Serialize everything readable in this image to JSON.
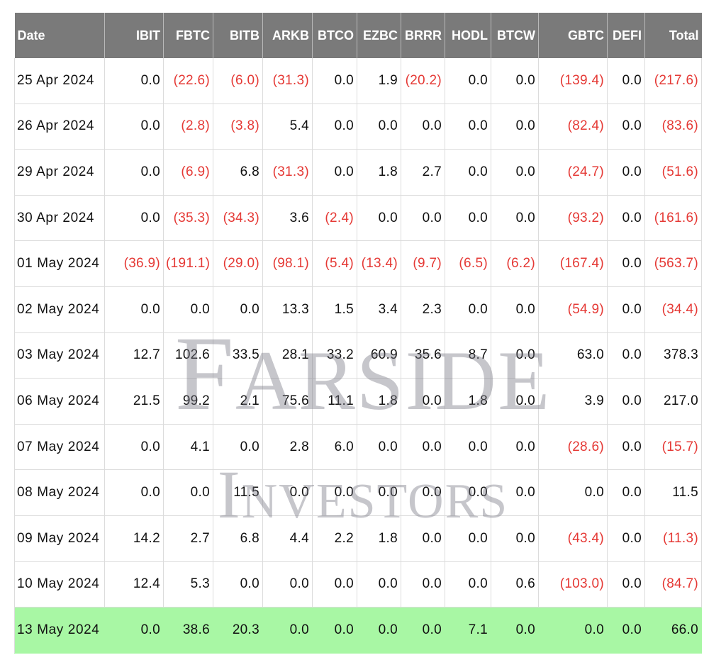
{
  "table": {
    "headers": [
      "Date",
      "IBIT",
      "FBTC",
      "BITB",
      "ARKB",
      "BTCO",
      "EZBC",
      "BRRR",
      "HODL",
      "BTCW",
      "GBTC",
      "DEFI",
      "Total"
    ],
    "rows": [
      [
        "25 Apr 2024",
        "0.0",
        "(22.6)",
        "(6.0)",
        "(31.3)",
        "0.0",
        "1.9",
        "(20.2)",
        "0.0",
        "0.0",
        "(139.4)",
        "0.0",
        "(217.6)"
      ],
      [
        "26 Apr 2024",
        "0.0",
        "(2.8)",
        "(3.8)",
        "5.4",
        "0.0",
        "0.0",
        "0.0",
        "0.0",
        "0.0",
        "(82.4)",
        "0.0",
        "(83.6)"
      ],
      [
        "29 Apr 2024",
        "0.0",
        "(6.9)",
        "6.8",
        "(31.3)",
        "0.0",
        "1.8",
        "2.7",
        "0.0",
        "0.0",
        "(24.7)",
        "0.0",
        "(51.6)"
      ],
      [
        "30 Apr 2024",
        "0.0",
        "(35.3)",
        "(34.3)",
        "3.6",
        "(2.4)",
        "0.0",
        "0.0",
        "0.0",
        "0.0",
        "(93.2)",
        "0.0",
        "(161.6)"
      ],
      [
        "01 May 2024",
        "(36.9)",
        "(191.1)",
        "(29.0)",
        "(98.1)",
        "(5.4)",
        "(13.4)",
        "(9.7)",
        "(6.5)",
        "(6.2)",
        "(167.4)",
        "0.0",
        "(563.7)"
      ],
      [
        "02 May 2024",
        "0.0",
        "0.0",
        "0.0",
        "13.3",
        "1.5",
        "3.4",
        "2.3",
        "0.0",
        "0.0",
        "(54.9)",
        "0.0",
        "(34.4)"
      ],
      [
        "03 May 2024",
        "12.7",
        "102.6",
        "33.5",
        "28.1",
        "33.2",
        "60.9",
        "35.6",
        "8.7",
        "0.0",
        "63.0",
        "0.0",
        "378.3"
      ],
      [
        "06 May 2024",
        "21.5",
        "99.2",
        "2.1",
        "75.6",
        "11.1",
        "1.8",
        "0.0",
        "1.8",
        "0.0",
        "3.9",
        "0.0",
        "217.0"
      ],
      [
        "07 May 2024",
        "0.0",
        "4.1",
        "0.0",
        "2.8",
        "6.0",
        "0.0",
        "0.0",
        "0.0",
        "0.0",
        "(28.6)",
        "0.0",
        "(15.7)"
      ],
      [
        "08 May 2024",
        "0.0",
        "0.0",
        "11.5",
        "0.0",
        "0.0",
        "0.0",
        "0.0",
        "0.0",
        "0.0",
        "0.0",
        "0.0",
        "11.5"
      ],
      [
        "09 May 2024",
        "14.2",
        "2.7",
        "6.8",
        "4.4",
        "2.2",
        "1.8",
        "0.0",
        "0.0",
        "0.0",
        "(43.4)",
        "0.0",
        "(11.3)"
      ],
      [
        "10 May 2024",
        "12.4",
        "5.3",
        "0.0",
        "0.0",
        "0.0",
        "0.0",
        "0.0",
        "0.0",
        "0.6",
        "(103.0)",
        "0.0",
        "(84.7)"
      ],
      [
        "13 May 2024",
        "0.0",
        "38.6",
        "20.3",
        "0.0",
        "0.0",
        "0.0",
        "0.0",
        "7.1",
        "0.0",
        "0.0",
        "0.0",
        "66.0"
      ]
    ],
    "highlighted_row": 12,
    "colors": {
      "header_bg": "#7a7a7a",
      "header_text": "#ffffff",
      "negative_text": "#e53935",
      "highlight_bg": "#a8f7a4"
    }
  },
  "watermark": {
    "line1": {
      "initial": "F",
      "rest": "ARSIDE"
    },
    "line2": {
      "initial": "I",
      "rest": "NVESTORS"
    }
  }
}
